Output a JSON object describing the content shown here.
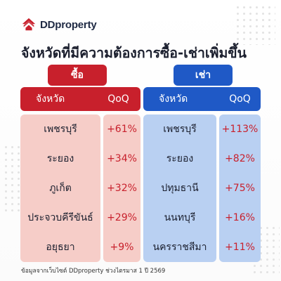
{
  "brand": {
    "name": "DDproperty",
    "color": "#c8202c"
  },
  "headline": "จังหวัดที่มีความต้องการซื้อ-เช่าเพิ่มขึ้น",
  "buy": {
    "label": "ซื้อ",
    "color": "#c8202c",
    "col_province": "จังหวัด",
    "col_qoq": "QoQ",
    "rows": [
      {
        "province": "เพชรบุรี",
        "qoq": "+61%"
      },
      {
        "province": "ระยอง",
        "qoq": "+34%"
      },
      {
        "province": "ภูเก็ต",
        "qoq": "+32%"
      },
      {
        "province": "ประจวบคีรีขันธ์",
        "qoq": "+29%"
      },
      {
        "province": "อยุธยา",
        "qoq": "+9%"
      }
    ]
  },
  "rent": {
    "label": "เช่า",
    "color": "#1f59c6",
    "col_province": "จังหวัด",
    "col_qoq": "QoQ",
    "rows": [
      {
        "province": "เพชรบุรี",
        "qoq": "+113%"
      },
      {
        "province": "ระยอง",
        "qoq": "+82%"
      },
      {
        "province": "ปทุมธานี",
        "qoq": "+75%"
      },
      {
        "province": "นนทบุรี",
        "qoq": "+16%"
      },
      {
        "province": "นครราชสีมา",
        "qoq": "+11%"
      }
    ]
  },
  "footnote": "ข้อมูลจากเว็บไซต์ DDproperty ช่วงไตรมาส 1 ปี 2569"
}
